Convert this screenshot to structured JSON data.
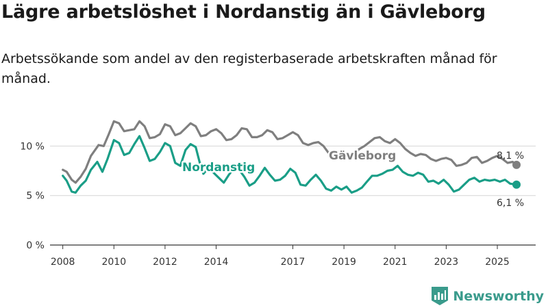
{
  "header": {
    "title": "Lägre arbetslöshet i Nordanstig än i Gävleborg",
    "subtitle": "Arbetssökande som andel av den registerbaserade arbetskraften månad för månad."
  },
  "brand": {
    "name": "Newsworthy",
    "icon": "newsworthy-logo-icon"
  },
  "colors": {
    "nordanstig": "#1a9e87",
    "gavleborg": "#7f7f7f",
    "grid": "#d6d6d6",
    "axis": "#333333"
  },
  "chart_data": {
    "type": "line",
    "title": "Lägre arbetslöshet i Nordanstig än i Gävleborg",
    "xlabel": "",
    "ylabel": "",
    "xlim": [
      2007.5,
      2026.5
    ],
    "ylim": [
      0,
      13
    ],
    "y_ticks": [
      {
        "value": 0,
        "label": "0 %"
      },
      {
        "value": 5,
        "label": "5 %"
      },
      {
        "value": 10,
        "label": "10 %"
      }
    ],
    "x_ticks": [
      {
        "value": 2008,
        "label": "2008"
      },
      {
        "value": 2010,
        "label": "2010"
      },
      {
        "value": 2012,
        "label": "2012"
      },
      {
        "value": 2014,
        "label": "2014"
      },
      {
        "value": 2017,
        "label": "2017"
      },
      {
        "value": 2019,
        "label": "2019"
      },
      {
        "value": 2021,
        "label": "2021"
      },
      {
        "value": 2023,
        "label": "2023"
      },
      {
        "value": 2025,
        "label": "2025"
      }
    ],
    "series": [
      {
        "name": "Gävleborg",
        "label": "Gävleborg",
        "end_label": "8,1 %",
        "end_value": 8.1,
        "points": [
          [
            2008.0,
            7.6
          ],
          [
            2008.15,
            7.4
          ],
          [
            2008.35,
            6.6
          ],
          [
            2008.5,
            6.3
          ],
          [
            2008.7,
            6.9
          ],
          [
            2008.9,
            7.7
          ],
          [
            2009.1,
            9.0
          ],
          [
            2009.4,
            10.1
          ],
          [
            2009.6,
            10.0
          ],
          [
            2009.8,
            11.2
          ],
          [
            2010.0,
            12.5
          ],
          [
            2010.2,
            12.3
          ],
          [
            2010.4,
            11.5
          ],
          [
            2010.6,
            11.6
          ],
          [
            2010.8,
            11.7
          ],
          [
            2011.0,
            12.5
          ],
          [
            2011.2,
            12.0
          ],
          [
            2011.4,
            10.8
          ],
          [
            2011.6,
            10.9
          ],
          [
            2011.8,
            11.2
          ],
          [
            2012.0,
            12.2
          ],
          [
            2012.2,
            12.0
          ],
          [
            2012.4,
            11.1
          ],
          [
            2012.6,
            11.3
          ],
          [
            2012.8,
            11.8
          ],
          [
            2013.0,
            12.3
          ],
          [
            2013.2,
            12.0
          ],
          [
            2013.4,
            11.0
          ],
          [
            2013.6,
            11.1
          ],
          [
            2013.8,
            11.5
          ],
          [
            2014.0,
            11.7
          ],
          [
            2014.2,
            11.3
          ],
          [
            2014.4,
            10.6
          ],
          [
            2014.6,
            10.7
          ],
          [
            2014.8,
            11.1
          ],
          [
            2015.0,
            11.8
          ],
          [
            2015.2,
            11.7
          ],
          [
            2015.4,
            10.9
          ],
          [
            2015.6,
            10.9
          ],
          [
            2015.8,
            11.1
          ],
          [
            2016.0,
            11.6
          ],
          [
            2016.2,
            11.4
          ],
          [
            2016.4,
            10.7
          ],
          [
            2016.6,
            10.8
          ],
          [
            2016.8,
            11.1
          ],
          [
            2017.0,
            11.4
          ],
          [
            2017.2,
            11.1
          ],
          [
            2017.4,
            10.3
          ],
          [
            2017.6,
            10.1
          ],
          [
            2017.8,
            10.3
          ],
          [
            2018.0,
            10.4
          ],
          [
            2018.2,
            10.0
          ],
          [
            2018.4,
            9.3
          ],
          [
            2018.6,
            9.0
          ],
          [
            2018.8,
            9.4
          ],
          [
            2019.0,
            9.3
          ],
          [
            2019.2,
            9.0
          ],
          [
            2019.4,
            9.2
          ],
          [
            2019.6,
            9.7
          ],
          [
            2019.8,
            10.0
          ],
          [
            2020.0,
            10.4
          ],
          [
            2020.2,
            10.8
          ],
          [
            2020.4,
            10.9
          ],
          [
            2020.6,
            10.5
          ],
          [
            2020.8,
            10.3
          ],
          [
            2021.0,
            10.7
          ],
          [
            2021.2,
            10.3
          ],
          [
            2021.4,
            9.7
          ],
          [
            2021.6,
            9.3
          ],
          [
            2021.8,
            9.0
          ],
          [
            2022.0,
            9.2
          ],
          [
            2022.2,
            9.1
          ],
          [
            2022.4,
            8.7
          ],
          [
            2022.6,
            8.5
          ],
          [
            2022.8,
            8.7
          ],
          [
            2023.0,
            8.8
          ],
          [
            2023.2,
            8.6
          ],
          [
            2023.4,
            8.0
          ],
          [
            2023.6,
            8.1
          ],
          [
            2023.8,
            8.3
          ],
          [
            2024.0,
            8.8
          ],
          [
            2024.2,
            8.9
          ],
          [
            2024.4,
            8.3
          ],
          [
            2024.6,
            8.5
          ],
          [
            2024.8,
            8.8
          ],
          [
            2025.0,
            9.0
          ],
          [
            2025.2,
            8.7
          ],
          [
            2025.4,
            8.3
          ],
          [
            2025.6,
            8.4
          ],
          [
            2025.75,
            8.1
          ]
        ]
      },
      {
        "name": "Nordanstig",
        "label": "Nordanstig",
        "end_label": "6,1 %",
        "end_value": 6.1,
        "points": [
          [
            2008.0,
            7.0
          ],
          [
            2008.15,
            6.5
          ],
          [
            2008.35,
            5.4
          ],
          [
            2008.5,
            5.3
          ],
          [
            2008.7,
            6.0
          ],
          [
            2008.9,
            6.5
          ],
          [
            2009.1,
            7.6
          ],
          [
            2009.35,
            8.4
          ],
          [
            2009.55,
            7.4
          ],
          [
            2009.75,
            8.7
          ],
          [
            2010.0,
            10.6
          ],
          [
            2010.2,
            10.3
          ],
          [
            2010.4,
            9.1
          ],
          [
            2010.6,
            9.3
          ],
          [
            2010.8,
            10.2
          ],
          [
            2011.0,
            11.0
          ],
          [
            2011.2,
            9.8
          ],
          [
            2011.4,
            8.5
          ],
          [
            2011.6,
            8.7
          ],
          [
            2011.8,
            9.4
          ],
          [
            2012.0,
            10.3
          ],
          [
            2012.2,
            10.0
          ],
          [
            2012.4,
            8.3
          ],
          [
            2012.6,
            8.0
          ],
          [
            2012.8,
            9.6
          ],
          [
            2013.0,
            10.2
          ],
          [
            2013.2,
            9.9
          ],
          [
            2013.35,
            8.4
          ],
          [
            2013.5,
            7.2
          ],
          [
            2013.7,
            7.8
          ],
          [
            2013.9,
            7.3
          ],
          [
            2014.1,
            6.8
          ],
          [
            2014.3,
            6.3
          ],
          [
            2014.5,
            7.1
          ],
          [
            2014.7,
            7.8
          ],
          [
            2014.9,
            7.6
          ],
          [
            2015.1,
            6.9
          ],
          [
            2015.3,
            6.0
          ],
          [
            2015.5,
            6.3
          ],
          [
            2015.7,
            7.0
          ],
          [
            2015.9,
            7.8
          ],
          [
            2016.1,
            7.1
          ],
          [
            2016.3,
            6.5
          ],
          [
            2016.5,
            6.6
          ],
          [
            2016.7,
            7.0
          ],
          [
            2016.9,
            7.7
          ],
          [
            2017.1,
            7.3
          ],
          [
            2017.3,
            6.1
          ],
          [
            2017.5,
            6.0
          ],
          [
            2017.7,
            6.6
          ],
          [
            2017.9,
            7.1
          ],
          [
            2018.1,
            6.5
          ],
          [
            2018.3,
            5.7
          ],
          [
            2018.5,
            5.5
          ],
          [
            2018.7,
            5.9
          ],
          [
            2018.9,
            5.6
          ],
          [
            2019.1,
            5.9
          ],
          [
            2019.3,
            5.3
          ],
          [
            2019.5,
            5.5
          ],
          [
            2019.7,
            5.8
          ],
          [
            2019.9,
            6.4
          ],
          [
            2020.1,
            7.0
          ],
          [
            2020.3,
            7.0
          ],
          [
            2020.5,
            7.2
          ],
          [
            2020.7,
            7.5
          ],
          [
            2020.9,
            7.6
          ],
          [
            2021.1,
            8.0
          ],
          [
            2021.3,
            7.4
          ],
          [
            2021.5,
            7.1
          ],
          [
            2021.7,
            7.0
          ],
          [
            2021.9,
            7.3
          ],
          [
            2022.1,
            7.1
          ],
          [
            2022.3,
            6.4
          ],
          [
            2022.5,
            6.5
          ],
          [
            2022.7,
            6.2
          ],
          [
            2022.9,
            6.6
          ],
          [
            2023.1,
            6.1
          ],
          [
            2023.3,
            5.4
          ],
          [
            2023.5,
            5.6
          ],
          [
            2023.7,
            6.1
          ],
          [
            2023.9,
            6.6
          ],
          [
            2024.1,
            6.8
          ],
          [
            2024.3,
            6.4
          ],
          [
            2024.5,
            6.6
          ],
          [
            2024.7,
            6.5
          ],
          [
            2024.9,
            6.6
          ],
          [
            2025.1,
            6.4
          ],
          [
            2025.3,
            6.6
          ],
          [
            2025.5,
            6.2
          ],
          [
            2025.75,
            6.1
          ]
        ]
      }
    ]
  }
}
